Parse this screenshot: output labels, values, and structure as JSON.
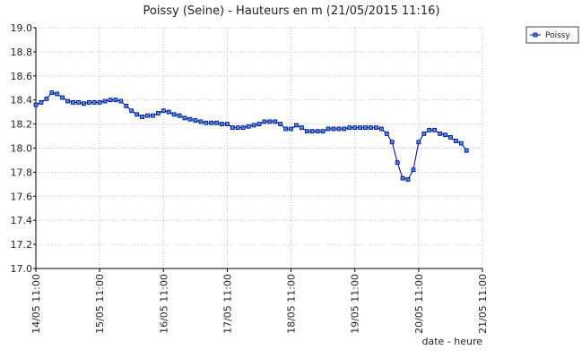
{
  "chart_data": {
    "type": "line",
    "title": "Poissy (Seine) - Hauteurs en m (21/05/2015 11:16)",
    "xlabel": "date - heure",
    "x": [
      0,
      2,
      4,
      6,
      8,
      10,
      12,
      14,
      16,
      18,
      20,
      22,
      24,
      26,
      28,
      30,
      32,
      34,
      36,
      38,
      40,
      42,
      44,
      46,
      48,
      50,
      52,
      54,
      56,
      58,
      60,
      62,
      64,
      66,
      68,
      70,
      72,
      74,
      76,
      78,
      80,
      82,
      84,
      86,
      88,
      90,
      92,
      94,
      96,
      98,
      100,
      102,
      104,
      106,
      108,
      110,
      112,
      114,
      116,
      118,
      120,
      122,
      124,
      126,
      128,
      130,
      132,
      134,
      136,
      138,
      140,
      142,
      144,
      146,
      148,
      150,
      152,
      154,
      156,
      158,
      160,
      162
    ],
    "series": [
      {
        "name": "Poissy",
        "color": "#000080",
        "marker_color": "#3a8fe0",
        "values": [
          18.36,
          18.38,
          18.41,
          18.46,
          18.45,
          18.42,
          18.39,
          18.38,
          18.38,
          18.37,
          18.38,
          18.38,
          18.38,
          18.39,
          18.4,
          18.4,
          18.39,
          18.35,
          18.31,
          18.28,
          18.26,
          18.27,
          18.27,
          18.29,
          18.31,
          18.3,
          18.28,
          18.27,
          18.25,
          18.24,
          18.23,
          18.22,
          18.21,
          18.21,
          18.21,
          18.2,
          18.2,
          18.17,
          18.17,
          18.17,
          18.18,
          18.19,
          18.2,
          18.22,
          18.22,
          18.22,
          18.2,
          18.16,
          18.16,
          18.19,
          18.17,
          18.14,
          18.14,
          18.14,
          18.14,
          18.16,
          18.16,
          18.16,
          18.16,
          18.17,
          18.17,
          18.17,
          18.17,
          18.17,
          18.17,
          18.16,
          18.12,
          18.05,
          17.88,
          17.75,
          17.74,
          17.82,
          18.05,
          18.12,
          18.15,
          18.15,
          18.12,
          18.11,
          18.09,
          18.06,
          18.04,
          17.98
        ]
      }
    ],
    "xlim": [
      0,
      168
    ],
    "xticks": [
      {
        "value": 0,
        "label": "14/05 11:00"
      },
      {
        "value": 24,
        "label": "15/05 11:00"
      },
      {
        "value": 48,
        "label": "16/05 11:00"
      },
      {
        "value": 72,
        "label": "17/05 11:00"
      },
      {
        "value": 96,
        "label": "18/05 11:00"
      },
      {
        "value": 120,
        "label": "19/05 11:00"
      },
      {
        "value": 144,
        "label": "20/05 11:00"
      },
      {
        "value": 168,
        "label": "21/05 11:00"
      }
    ],
    "ylim": [
      17,
      19
    ],
    "yticks": [
      {
        "value": 17,
        "label": "17.0"
      },
      17.2,
      17.4,
      17.6,
      17.8,
      {
        "value": 18,
        "label": "18.0"
      },
      18.2,
      18.4,
      18.6,
      18.8,
      {
        "value": 19,
        "label": "19.0"
      }
    ],
    "grid": true,
    "legend": "top-right"
  }
}
